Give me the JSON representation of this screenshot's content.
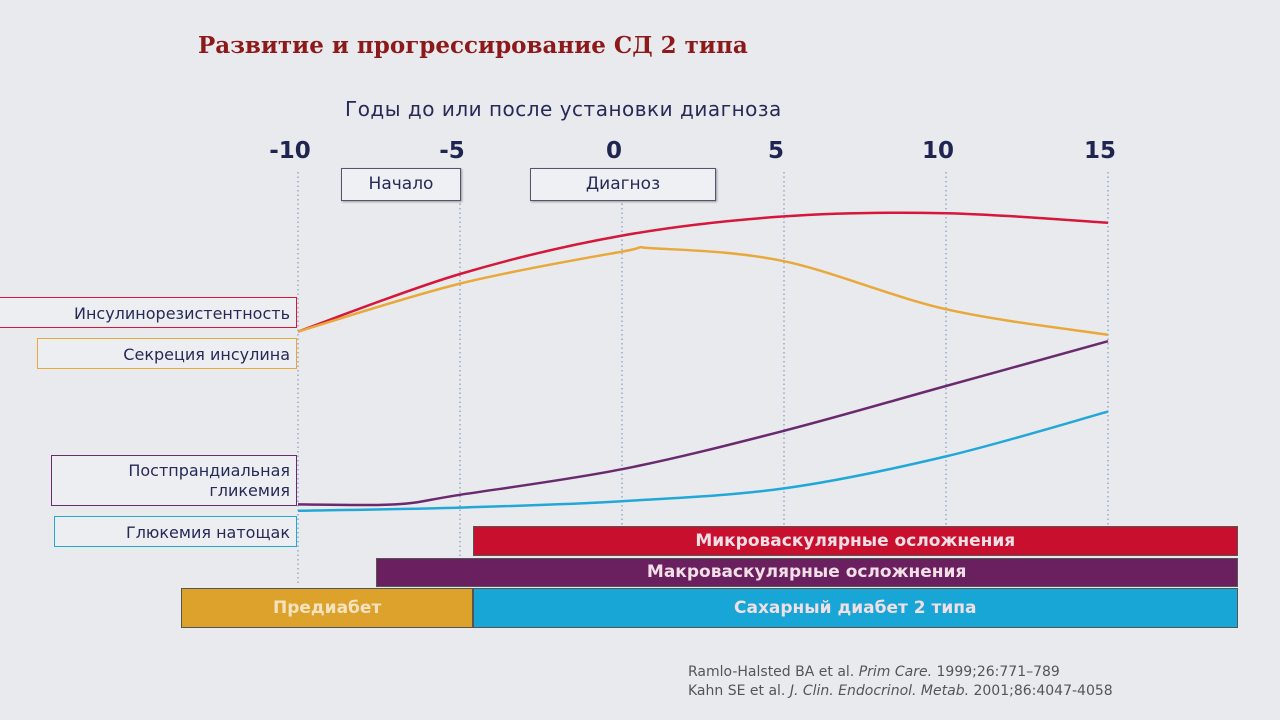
{
  "title": "Развитие и прогрессирование СД 2 типа",
  "chart_data": {
    "type": "line",
    "title": "Развитие и прогрессирование СД 2 типа",
    "xlabel": "Годы до или после установки диагноза",
    "ylabel": "",
    "xlim": [
      -13.6,
      19
    ],
    "ylim": [
      0,
      100
    ],
    "x_ticks": [
      -10,
      -5,
      0,
      5,
      10,
      15
    ],
    "x_tick_labels": [
      "-10",
      "-5",
      "0",
      "5",
      "10",
      "15"
    ],
    "grid": "vertical dotted",
    "events": [
      {
        "label": "Начало",
        "from": -8.6,
        "to": -5
      },
      {
        "label": "Диагноз",
        "from": -2.8,
        "to": 2.9
      }
    ],
    "series": [
      {
        "name": "Инсулинорезистентность",
        "color": "#d6163a",
        "x": [
          -10,
          -5,
          0,
          5,
          10,
          15
        ],
        "y": [
          62,
          80,
          92,
          98,
          99,
          96
        ]
      },
      {
        "name": "Секреция инсулина",
        "color": "#e8a83a",
        "x": [
          -10,
          -5,
          0,
          1,
          5,
          10,
          15
        ],
        "y": [
          62,
          77,
          87,
          88,
          84,
          69,
          61
        ]
      },
      {
        "name": "Постпрандиальная гликемия",
        "color": "#6a2a6e",
        "x": [
          -10,
          -7,
          -5,
          0,
          5,
          10,
          15
        ],
        "y": [
          8,
          8,
          11,
          19,
          31,
          45,
          59
        ]
      },
      {
        "name": "Глюкемия натощак",
        "color": "#22a8d8",
        "x": [
          -10,
          -5,
          0,
          5,
          10,
          15
        ],
        "y": [
          6,
          7,
          9,
          13,
          23,
          37
        ]
      }
    ],
    "periods": [
      {
        "label": "Микроваскулярные осложнения",
        "from": -4.6,
        "to": 19,
        "color": "#c8102e"
      },
      {
        "label": "Макроваскулярные осложнения",
        "from": -7.6,
        "to": 19,
        "color": "#6a1f5e"
      },
      {
        "label": "Предиабет",
        "from": -13.6,
        "to": -4.6,
        "color": "#dca22c"
      },
      {
        "label": "Сахарный диабет 2 типа",
        "from": -4.6,
        "to": 19,
        "color": "#18a6d6"
      }
    ]
  },
  "references": [
    {
      "authors": "Ramlo-Halsted BA et al.",
      "journal": "Prim Care.",
      "details": "1999;26:771–789"
    },
    {
      "authors": "Kahn SE et al.",
      "journal": "J. Clin. Endocrinol. Metab.",
      "details": "2001;86:4047-4058"
    }
  ]
}
